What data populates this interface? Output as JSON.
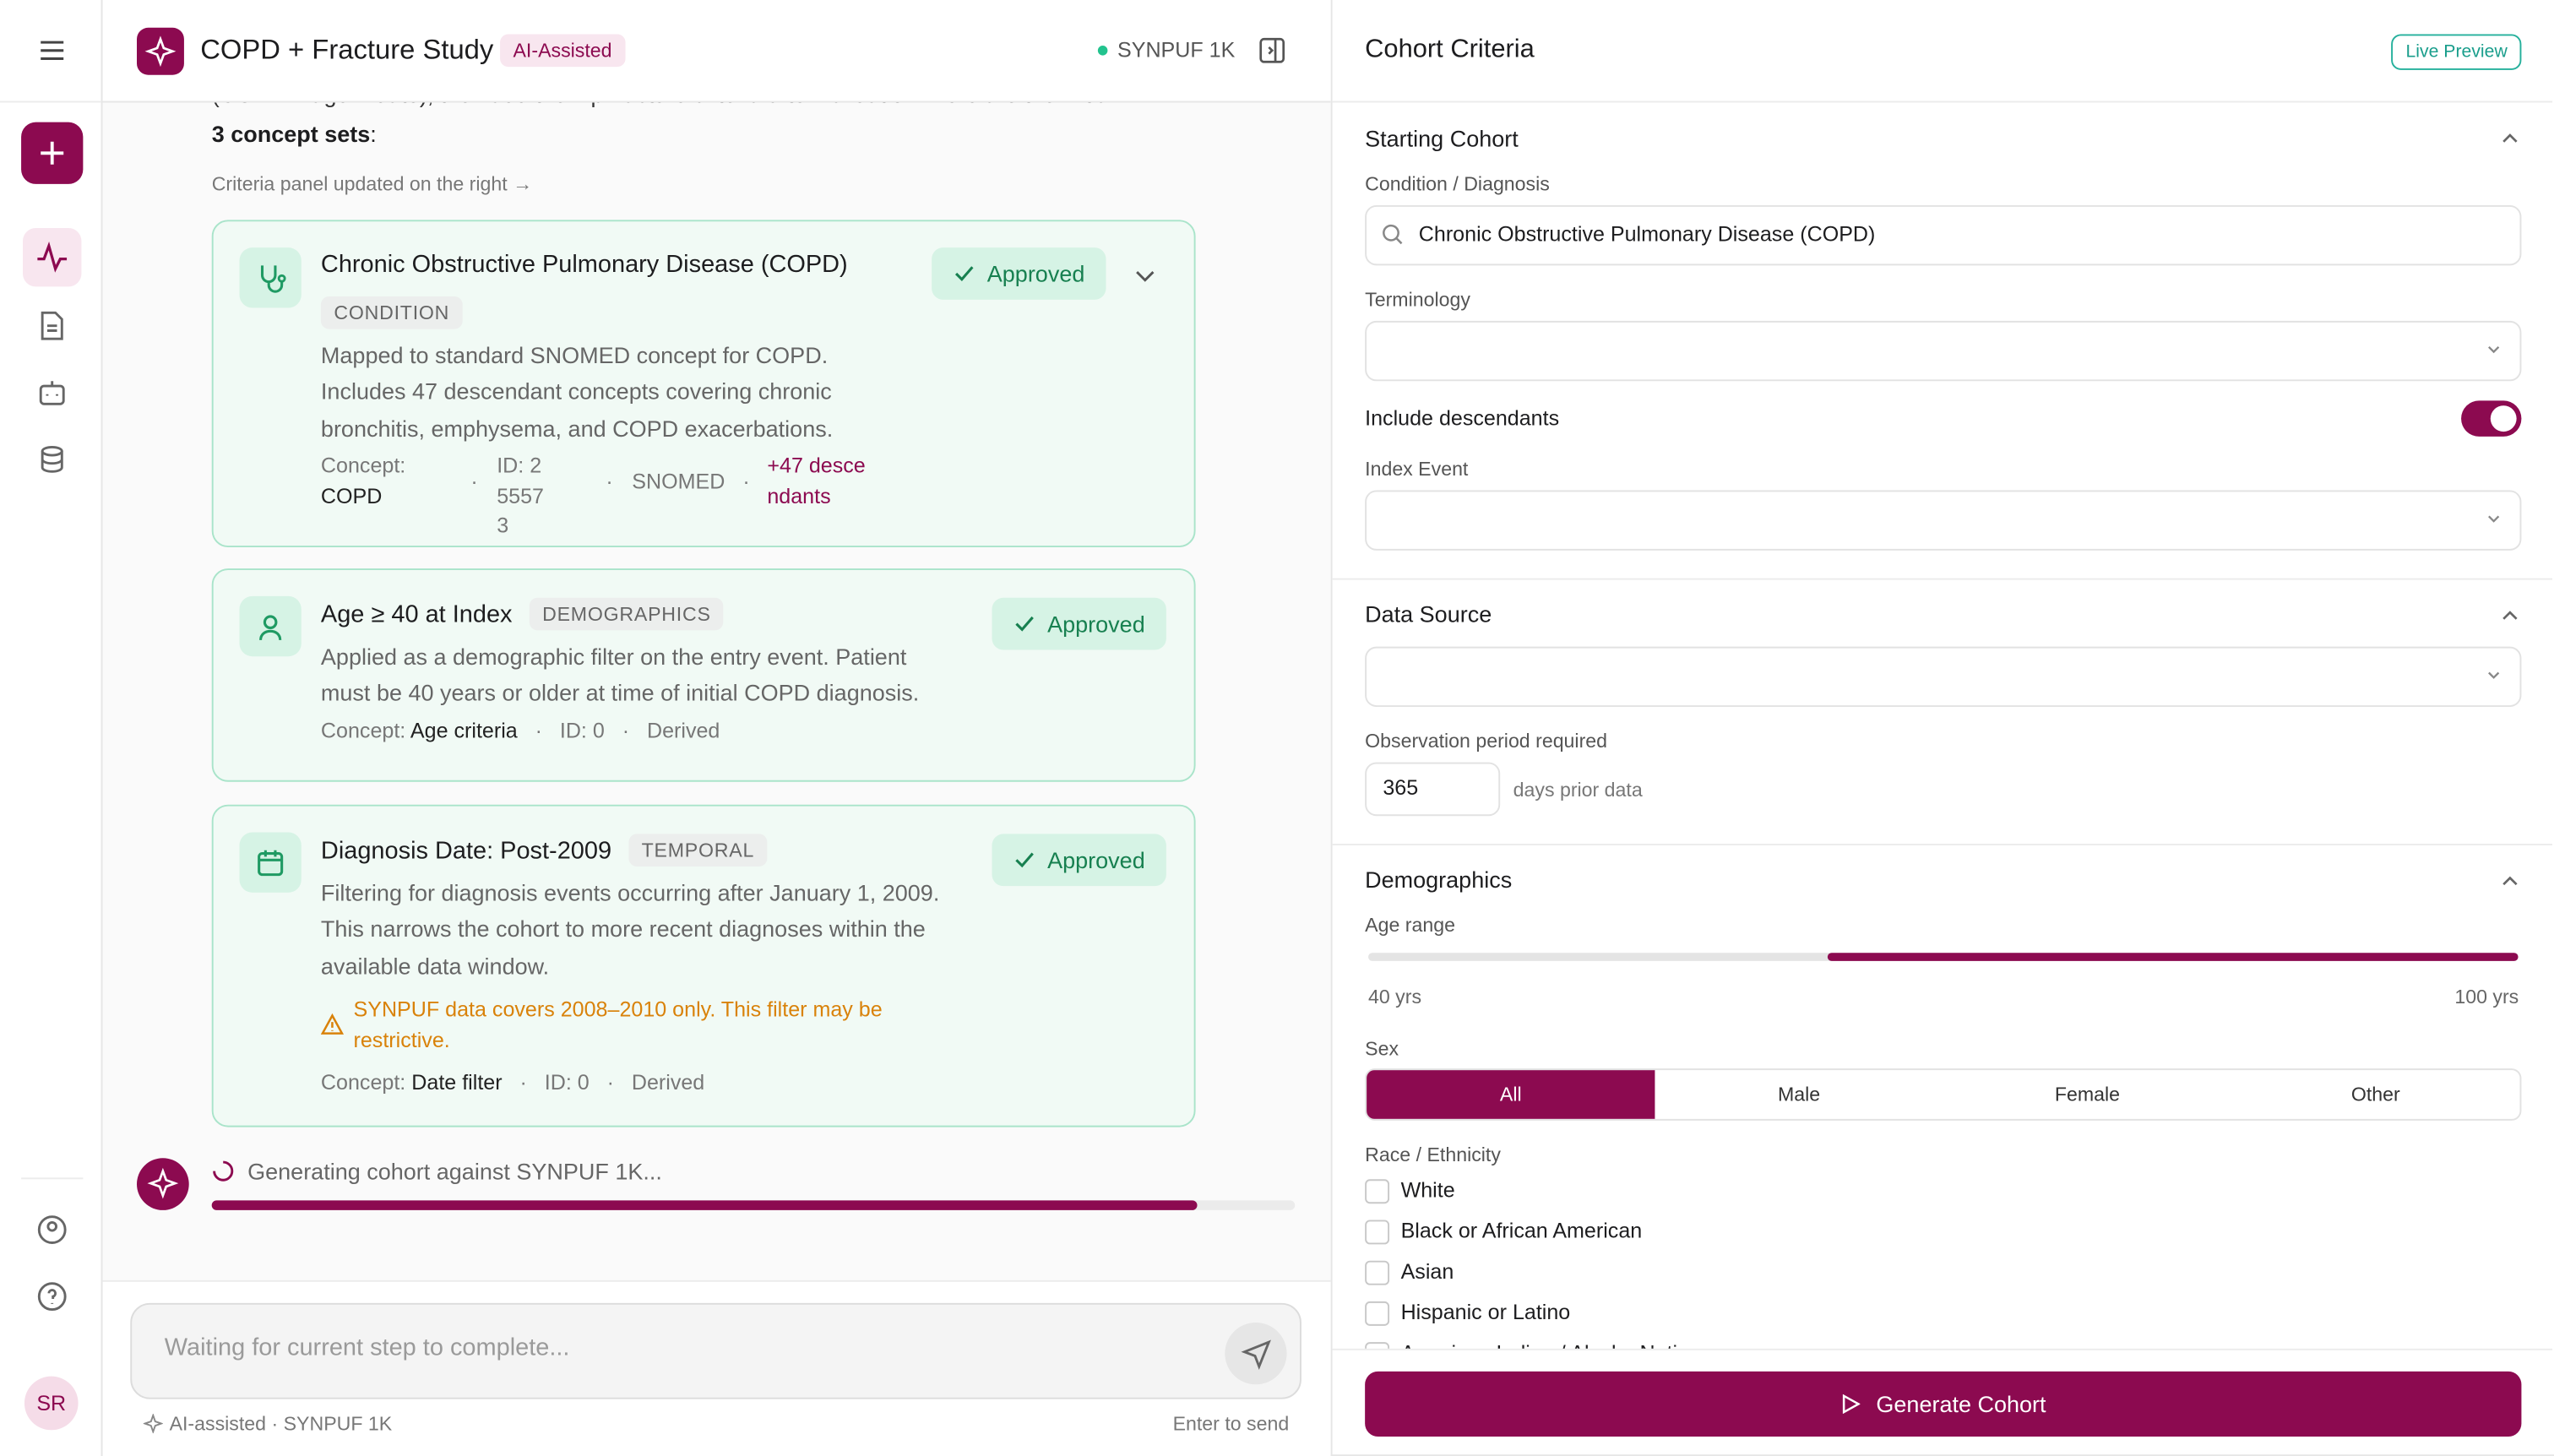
{
  "sidebar": {
    "avatar": "SR"
  },
  "header": {
    "title": "COPD + Fracture Study",
    "badge": "AI-Assisted",
    "source": "SYNPUF 1K"
  },
  "chat": {
    "partial_text": "(COPD + age + date), then add the hip fracture criteria after validation. Here are the initial",
    "intro_bold": "3 concept sets",
    "intro_rest": ":",
    "note": "Criteria panel updated on the right →",
    "cards": [
      {
        "title": "Chronic Obstructive Pulmonary Disease (COPD)",
        "tag": "CONDITION",
        "status": "Approved",
        "description": "Mapped to standard SNOMED concept for COPD. Includes 47 descendant concepts covering chronic bronchitis, emphysema, and COPD exacerbations.",
        "concept_label": "Concept:",
        "concept": "COPD",
        "id": "ID: 255573",
        "vocabulary": "SNOMED",
        "descendants": "+47 descendants"
      },
      {
        "title": "Age ≥ 40 at Index",
        "tag": "DEMOGRAPHICS",
        "status": "Approved",
        "description": "Applied as a demographic filter on the entry event. Patient must be 40 years or older at time of initial COPD diagnosis.",
        "concept_label": "Concept:",
        "concept": "Age criteria",
        "id": "ID: 0",
        "vocabulary": "Derived"
      },
      {
        "title": "Diagnosis Date: Post-2009",
        "tag": "TEMPORAL",
        "status": "Approved",
        "description": "Filtering for diagnosis events occurring after January 1, 2009. This narrows the cohort to more recent diagnoses within the available data window.",
        "warning": "SYNPUF data covers 2008–2010 only. This filter may be restrictive.",
        "concept_label": "Concept:",
        "concept": "Date filter",
        "id": "ID: 0",
        "vocabulary": "Derived"
      }
    ],
    "status": "Generating cohort against SYNPUF 1K...",
    "progress": 0.91,
    "input_placeholder": "Waiting for current step to complete...",
    "footer_left": "AI-assisted · SYNPUF 1K",
    "footer_right": "Enter to send"
  },
  "panel": {
    "title": "Cohort Criteria",
    "badge": "Live Preview",
    "starting": {
      "title": "Starting Cohort",
      "condition_label": "Condition / Diagnosis",
      "condition": "Chronic Obstructive Pulmonary Disease (COPD)",
      "terminology_label": "Terminology",
      "descendants_label": "Include descendants",
      "descendants_on": true,
      "index_label": "Index Event"
    },
    "data_source": {
      "title": "Data Source",
      "observation_label": "Observation period required",
      "observation": "365",
      "observation_unit": "days prior data"
    },
    "demographics": {
      "title": "Demographics",
      "age_label": "Age range",
      "age_min": 40,
      "age_max": 100,
      "age_min_label": "40 yrs",
      "age_max_label": "100 yrs",
      "sex_label": "Sex",
      "sex_options": [
        "All",
        "Male",
        "Female",
        "Other"
      ],
      "sex_active": 0,
      "race_label": "Race / Ethnicity",
      "race_options": [
        "White",
        "Black or African American",
        "Asian",
        "Hispanic or Latino",
        "American Indian / Alaska Native"
      ]
    },
    "button": "Generate Cohort"
  }
}
